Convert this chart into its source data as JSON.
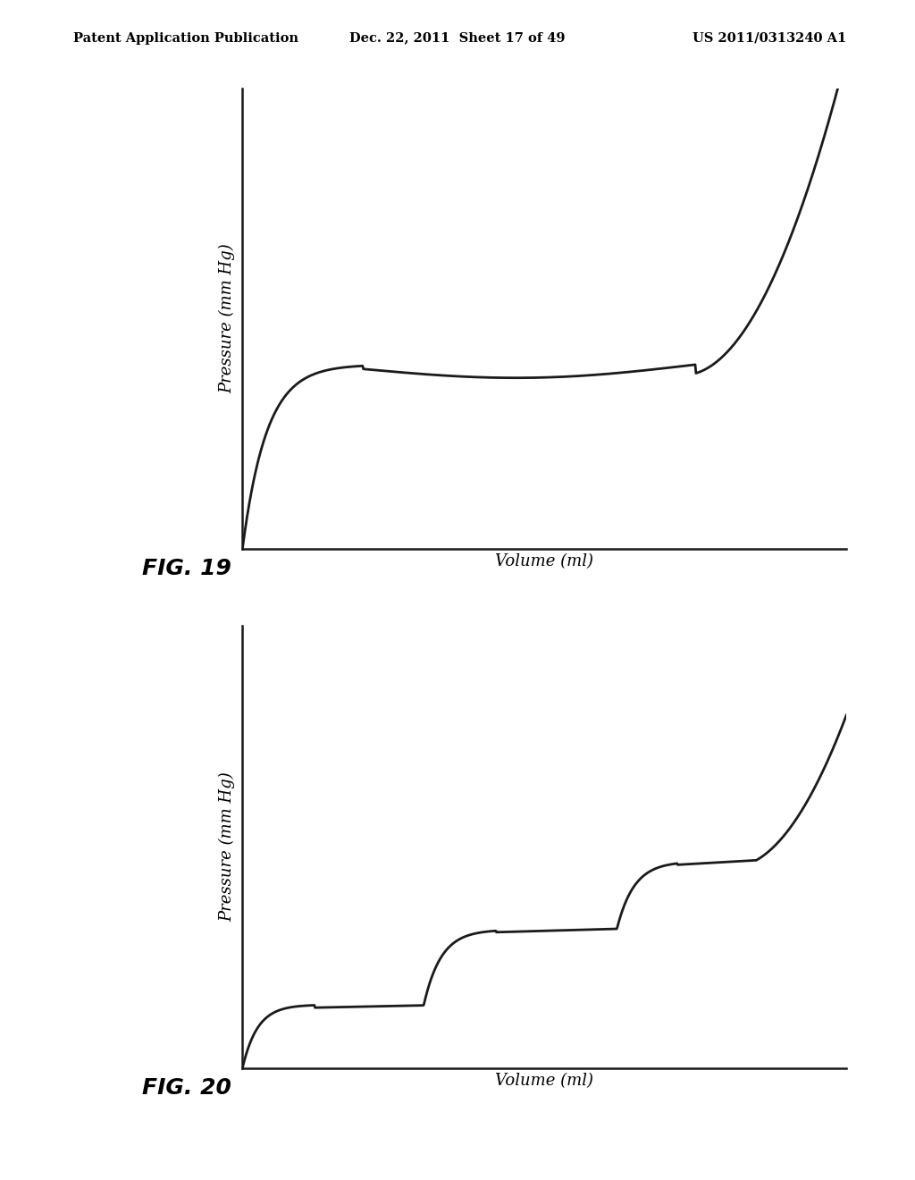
{
  "header_left": "Patent Application Publication",
  "header_center": "Dec. 22, 2011  Sheet 17 of 49",
  "header_right": "US 2011/0313240 A1",
  "fig19_label": "FIG. 19",
  "fig20_label": "FIG. 20",
  "ylabel": "Pressure (mm Hg)",
  "xlabel": "Volume (ml)",
  "bg_color": "#ffffff",
  "line_color": "#1a1a1a",
  "line_width": 2.0,
  "header_fontsize": 10.5,
  "fig_label_fontsize": 18,
  "axis_label_fontsize": 13
}
